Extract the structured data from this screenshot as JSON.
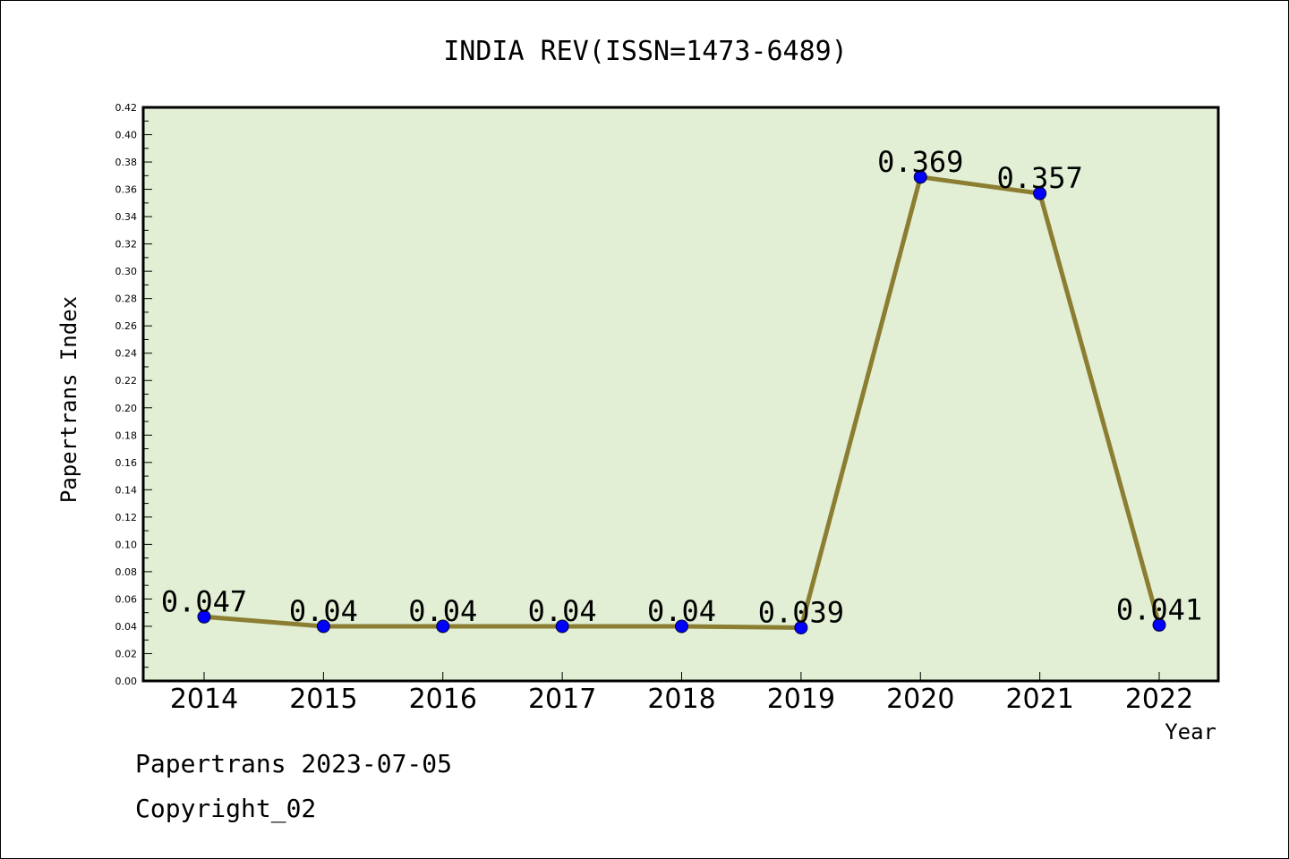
{
  "chart_data": {
    "type": "line",
    "title": "INDIA REV(ISSN=1473-6489)",
    "xlabel": "Year",
    "ylabel": "Papertrans Index",
    "x": [
      "2014",
      "2015",
      "2016",
      "2017",
      "2018",
      "2019",
      "2020",
      "2021",
      "2022"
    ],
    "series": [
      {
        "values": [
          0.047,
          0.04,
          0.04,
          0.04,
          0.04,
          0.039,
          0.369,
          0.357,
          0.041
        ],
        "data_labels": [
          "0.047",
          "0.04",
          "0.04",
          "0.04",
          "0.04",
          "0.039",
          "0.369",
          "0.357",
          "0.041"
        ]
      }
    ],
    "ylim": [
      0,
      0.42
    ],
    "yticks": [
      "0.00",
      "0.02",
      "0.04",
      "0.06",
      "0.08",
      "0.10",
      "0.12",
      "0.14",
      "0.16",
      "0.18",
      "0.20",
      "0.22",
      "0.24",
      "0.26",
      "0.28",
      "0.30",
      "0.32",
      "0.34",
      "0.36",
      "0.38",
      "0.40",
      "0.42"
    ],
    "grid": false,
    "legend": "none",
    "colors": {
      "line": "#8B7D32",
      "marker": "#0000FF",
      "plot_background": "#E2EFD4"
    }
  },
  "footer": {
    "line1": "Papertrans 2023-07-05",
    "line2": "Copyright_02"
  }
}
